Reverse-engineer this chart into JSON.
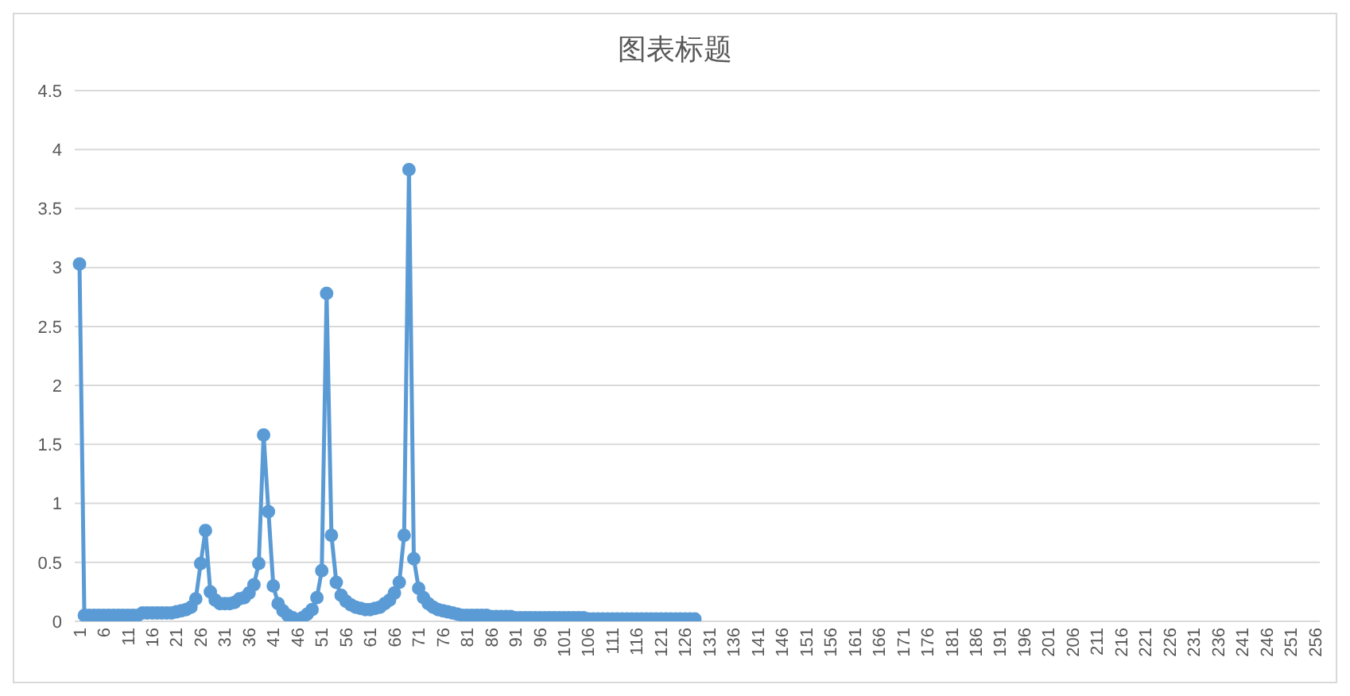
{
  "chart_data": {
    "type": "line",
    "title": "图表标题",
    "categories": [
      "1",
      null,
      null,
      null,
      null,
      "6",
      null,
      null,
      null,
      null,
      "11",
      null,
      null,
      null,
      null,
      "16",
      null,
      null,
      null,
      null,
      "21",
      null,
      null,
      null,
      null,
      "26",
      null,
      null,
      null,
      null,
      "31",
      null,
      null,
      null,
      null,
      "36",
      null,
      null,
      null,
      null,
      "41",
      null,
      null,
      null,
      null,
      "46",
      null,
      null,
      null,
      null,
      "51",
      null,
      null,
      null,
      null,
      "56",
      null,
      null,
      null,
      null,
      "61",
      null,
      null,
      null,
      null,
      "66",
      null,
      null,
      null,
      null,
      "71",
      null,
      null,
      null,
      null,
      "76",
      null,
      null,
      null,
      null,
      "81",
      null,
      null,
      null,
      null,
      "86",
      null,
      null,
      null,
      null,
      "91",
      null,
      null,
      null,
      null,
      "96",
      null,
      null,
      null,
      null,
      "101",
      null,
      null,
      null,
      null,
      "106",
      null,
      null,
      null,
      null,
      "111",
      null,
      null,
      null,
      null,
      "116",
      null,
      null,
      null,
      null,
      "121",
      null,
      null,
      null,
      null,
      "126",
      null,
      null,
      null,
      null,
      "131",
      null,
      null,
      null,
      null,
      "136",
      null,
      null,
      null,
      null,
      "141",
      null,
      null,
      null,
      null,
      "146",
      null,
      null,
      null,
      null,
      "151",
      null,
      null,
      null,
      null,
      "156",
      null,
      null,
      null,
      null,
      "161",
      null,
      null,
      null,
      null,
      "166",
      null,
      null,
      null,
      null,
      "171",
      null,
      null,
      null,
      null,
      "176",
      null,
      null,
      null,
      null,
      "181",
      null,
      null,
      null,
      null,
      "186",
      null,
      null,
      null,
      null,
      "191",
      null,
      null,
      null,
      null,
      "196",
      null,
      null,
      null,
      null,
      "201",
      null,
      null,
      null,
      null,
      "206",
      null,
      null,
      null,
      null,
      "211",
      null,
      null,
      null,
      null,
      "216",
      null,
      null,
      null,
      null,
      "221",
      null,
      null,
      null,
      null,
      "226",
      null,
      null,
      null,
      null,
      "231",
      null,
      null,
      null,
      null,
      "236",
      null,
      null,
      null,
      null,
      "241",
      null,
      null,
      null,
      null,
      "246",
      null,
      null,
      null,
      null,
      "251",
      null,
      null,
      null,
      null,
      "256"
    ],
    "series": [
      {
        "color": "#5b9bd5",
        "values": [
          3.03,
          0.05,
          0.05,
          0.05,
          0.05,
          0.05,
          0.05,
          0.05,
          0.05,
          0.05,
          0.05,
          0.05,
          0.05,
          0.07,
          0.07,
          0.07,
          0.07,
          0.07,
          0.07,
          0.07,
          0.08,
          0.09,
          0.1,
          0.12,
          0.19,
          0.49,
          0.77,
          0.25,
          0.18,
          0.15,
          0.15,
          0.15,
          0.16,
          0.19,
          0.2,
          0.24,
          0.31,
          0.49,
          1.58,
          0.93,
          0.3,
          0.15,
          0.09,
          0.05,
          0.03,
          0.01,
          0.03,
          0.06,
          0.1,
          0.2,
          0.43,
          2.78,
          0.73,
          0.33,
          0.22,
          0.17,
          0.14,
          0.12,
          0.11,
          0.1,
          0.1,
          0.11,
          0.12,
          0.15,
          0.18,
          0.24,
          0.33,
          0.73,
          3.83,
          0.53,
          0.28,
          0.2,
          0.15,
          0.12,
          0.1,
          0.09,
          0.08,
          0.07,
          0.06,
          0.05,
          0.05,
          0.05,
          0.05,
          0.05,
          0.05,
          0.04,
          0.04,
          0.04,
          0.04,
          0.04,
          0.03,
          0.03,
          0.03,
          0.03,
          0.03,
          0.03,
          0.03,
          0.03,
          0.03,
          0.03,
          0.03,
          0.03,
          0.03,
          0.03,
          0.03,
          0.02,
          0.02,
          0.02,
          0.02,
          0.02,
          0.02,
          0.02,
          0.02,
          0.02,
          0.02,
          0.02,
          0.02,
          0.02,
          0.02,
          0.02,
          0.02,
          0.02,
          0.02,
          0.02,
          0.02,
          0.02,
          0.02,
          0.02,
          null,
          null,
          null,
          null,
          null,
          null,
          null,
          null,
          null,
          null,
          null,
          null,
          null,
          null,
          null,
          null,
          null,
          null,
          null,
          null,
          null,
          null,
          null,
          null,
          null,
          null,
          null,
          null,
          null,
          null,
          null,
          null,
          null,
          null,
          null,
          null,
          null,
          null,
          null,
          null,
          null,
          null,
          null,
          null,
          null,
          null,
          null,
          null,
          null,
          null,
          null,
          null,
          null,
          null,
          null,
          null,
          null,
          null,
          null,
          null,
          null,
          null,
          null,
          null,
          null,
          null,
          null,
          null,
          null,
          null,
          null,
          null,
          null,
          null,
          null,
          null,
          null,
          null,
          null,
          null,
          null,
          null,
          null,
          null,
          null,
          null,
          null,
          null,
          null,
          null,
          null,
          null,
          null,
          null,
          null,
          null,
          null,
          null,
          null,
          null,
          null,
          null,
          null,
          null,
          null,
          null,
          null,
          null,
          null,
          null,
          null,
          null,
          null,
          null,
          null,
          null,
          null,
          null,
          null,
          null,
          null,
          null,
          null,
          null,
          null,
          null,
          null,
          null
        ]
      }
    ],
    "ylim": [
      0,
      4.5
    ],
    "yticks": [
      0,
      0.5,
      1,
      1.5,
      2,
      2.5,
      3,
      3.5,
      4,
      4.5
    ],
    "grid": "y",
    "legend": false,
    "marker": "circle",
    "line_style": "solid"
  }
}
